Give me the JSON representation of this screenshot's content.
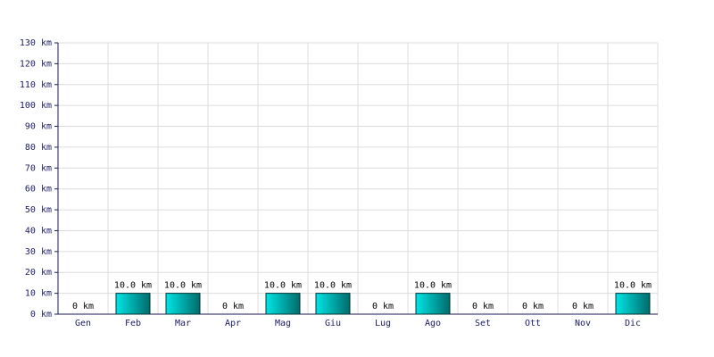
{
  "chart_data": {
    "type": "bar",
    "categories": [
      "Gen",
      "Feb",
      "Mar",
      "Apr",
      "Mag",
      "Giu",
      "Lug",
      "Ago",
      "Set",
      "Ott",
      "Nov",
      "Dic"
    ],
    "values": [
      0,
      10,
      10,
      0,
      10,
      10,
      0,
      10,
      0,
      0,
      0,
      10
    ],
    "value_labels": [
      "0 km",
      "10.0 km",
      "10.0 km",
      "0 km",
      "10.0 km",
      "10.0 km",
      "0 km",
      "10.0 km",
      "0 km",
      "0 km",
      "0 km",
      "10.0 km"
    ],
    "color": "#00e5e5",
    "ylim": [
      0,
      130
    ],
    "yticks": [
      {
        "value": 0,
        "label": "0 km"
      },
      {
        "value": 10,
        "label": "10 km"
      },
      {
        "value": 20,
        "label": "20 km"
      },
      {
        "value": 30,
        "label": "30 km"
      },
      {
        "value": 40,
        "label": "40 km"
      },
      {
        "value": 50,
        "label": "50 km"
      },
      {
        "value": 60,
        "label": "60 km"
      },
      {
        "value": 70,
        "label": "70 km"
      },
      {
        "value": 80,
        "label": "80 km"
      },
      {
        "value": 90,
        "label": "90 km"
      },
      {
        "value": 100,
        "label": "100 km"
      },
      {
        "value": 110,
        "label": "110 km"
      },
      {
        "value": 120,
        "label": "120 km"
      },
      {
        "value": 130,
        "label": "130 km"
      }
    ],
    "grid": true
  }
}
